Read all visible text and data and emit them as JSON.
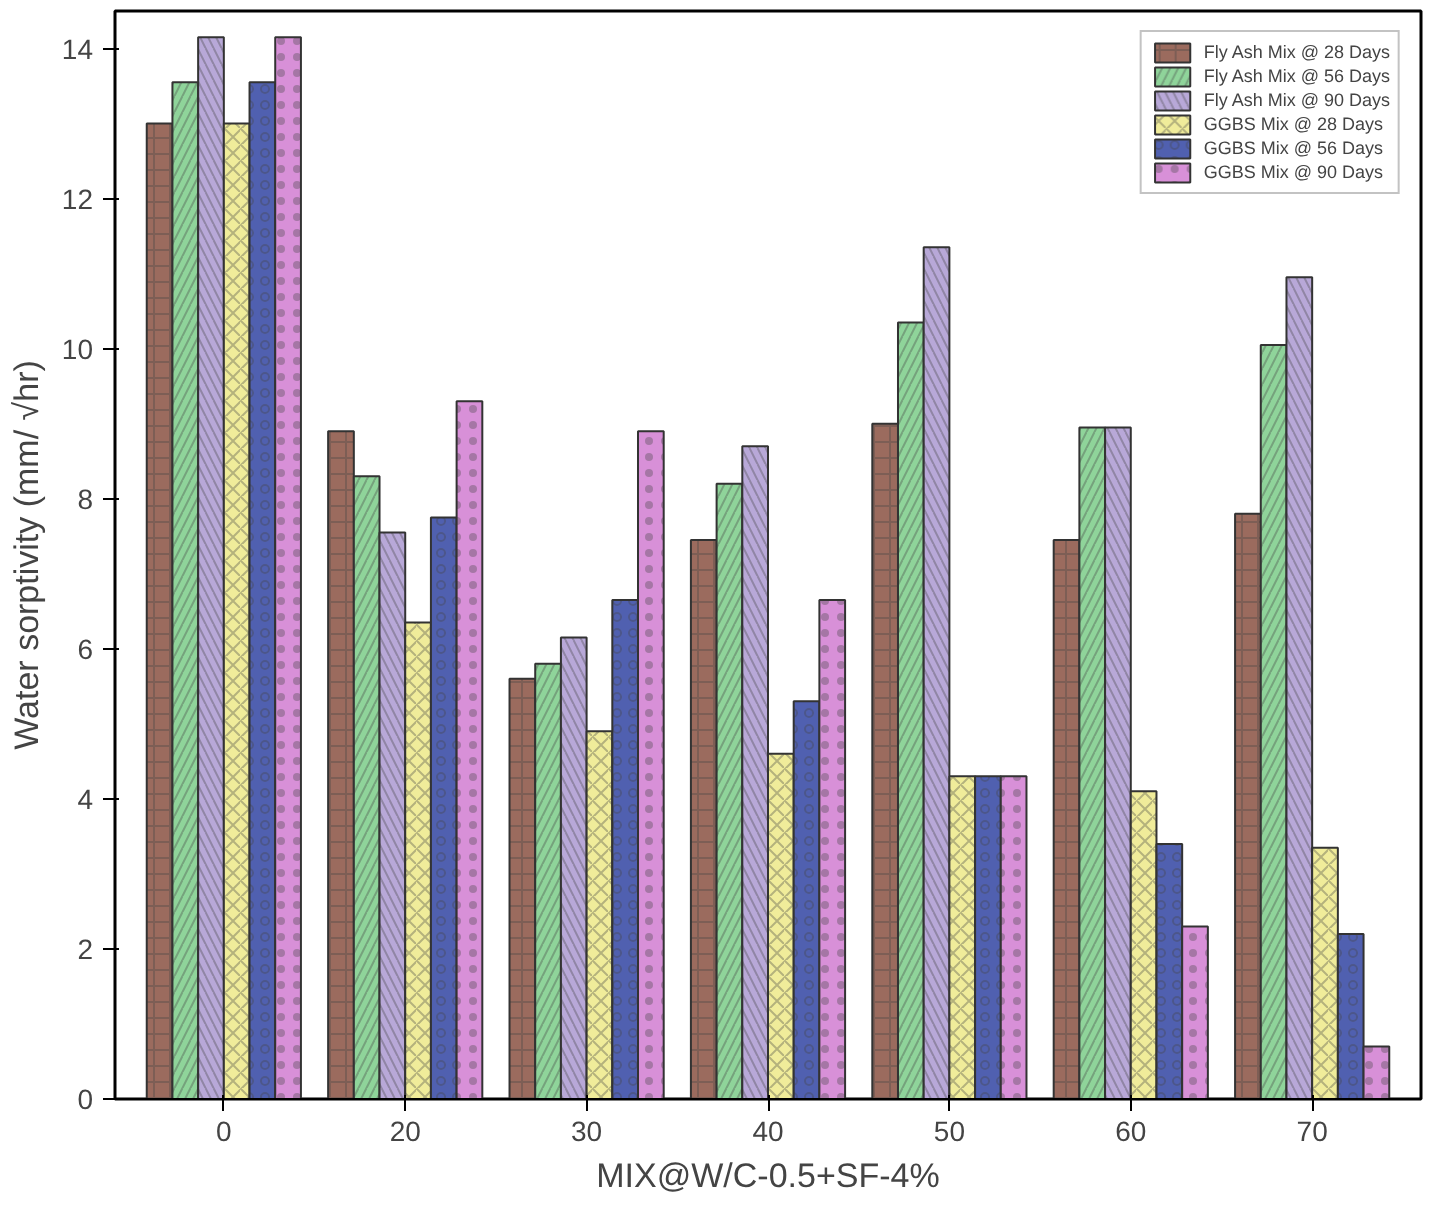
{
  "chart_data": {
    "type": "bar",
    "xlabel": "MIX@W/C-0.5+SF-4%",
    "ylabel": "Water sorptivity (mm/ √hr)",
    "categories": [
      "0",
      "20",
      "30",
      "40",
      "50",
      "60",
      "70"
    ],
    "series": [
      {
        "name": "Fly Ash Mix @ 28 Days",
        "color": "#9b6b5e",
        "values": [
          13.0,
          8.9,
          5.6,
          7.45,
          9.0,
          7.45,
          7.8
        ]
      },
      {
        "name": "Fly Ash Mix @ 56 Days",
        "color": "#8fd49a",
        "values": [
          13.55,
          8.3,
          5.8,
          8.2,
          10.35,
          8.95,
          10.05
        ]
      },
      {
        "name": "Fly Ash Mix @ 90 Days",
        "color": "#b8a8d8",
        "values": [
          14.15,
          7.55,
          6.15,
          8.7,
          11.35,
          8.95,
          10.95
        ]
      },
      {
        "name": "GGBS Mix @ 28 Days",
        "color": "#f0ec9a",
        "values": [
          13.0,
          6.35,
          4.9,
          4.6,
          4.3,
          4.1,
          3.35
        ]
      },
      {
        "name": "GGBS Mix @ 56 Days",
        "color": "#5060b0",
        "values": [
          13.55,
          7.75,
          6.65,
          5.3,
          4.3,
          3.4,
          2.2
        ]
      },
      {
        "name": "GGBS Mix @ 90 Days",
        "color": "#d890d8",
        "values": [
          14.15,
          9.3,
          8.9,
          6.65,
          4.3,
          2.3,
          0.7
        ]
      }
    ],
    "ylim": [
      0,
      14.5
    ],
    "yticks": [
      0,
      2,
      4,
      6,
      8,
      10,
      12,
      14
    ],
    "grid": false,
    "legend": "top right"
  }
}
